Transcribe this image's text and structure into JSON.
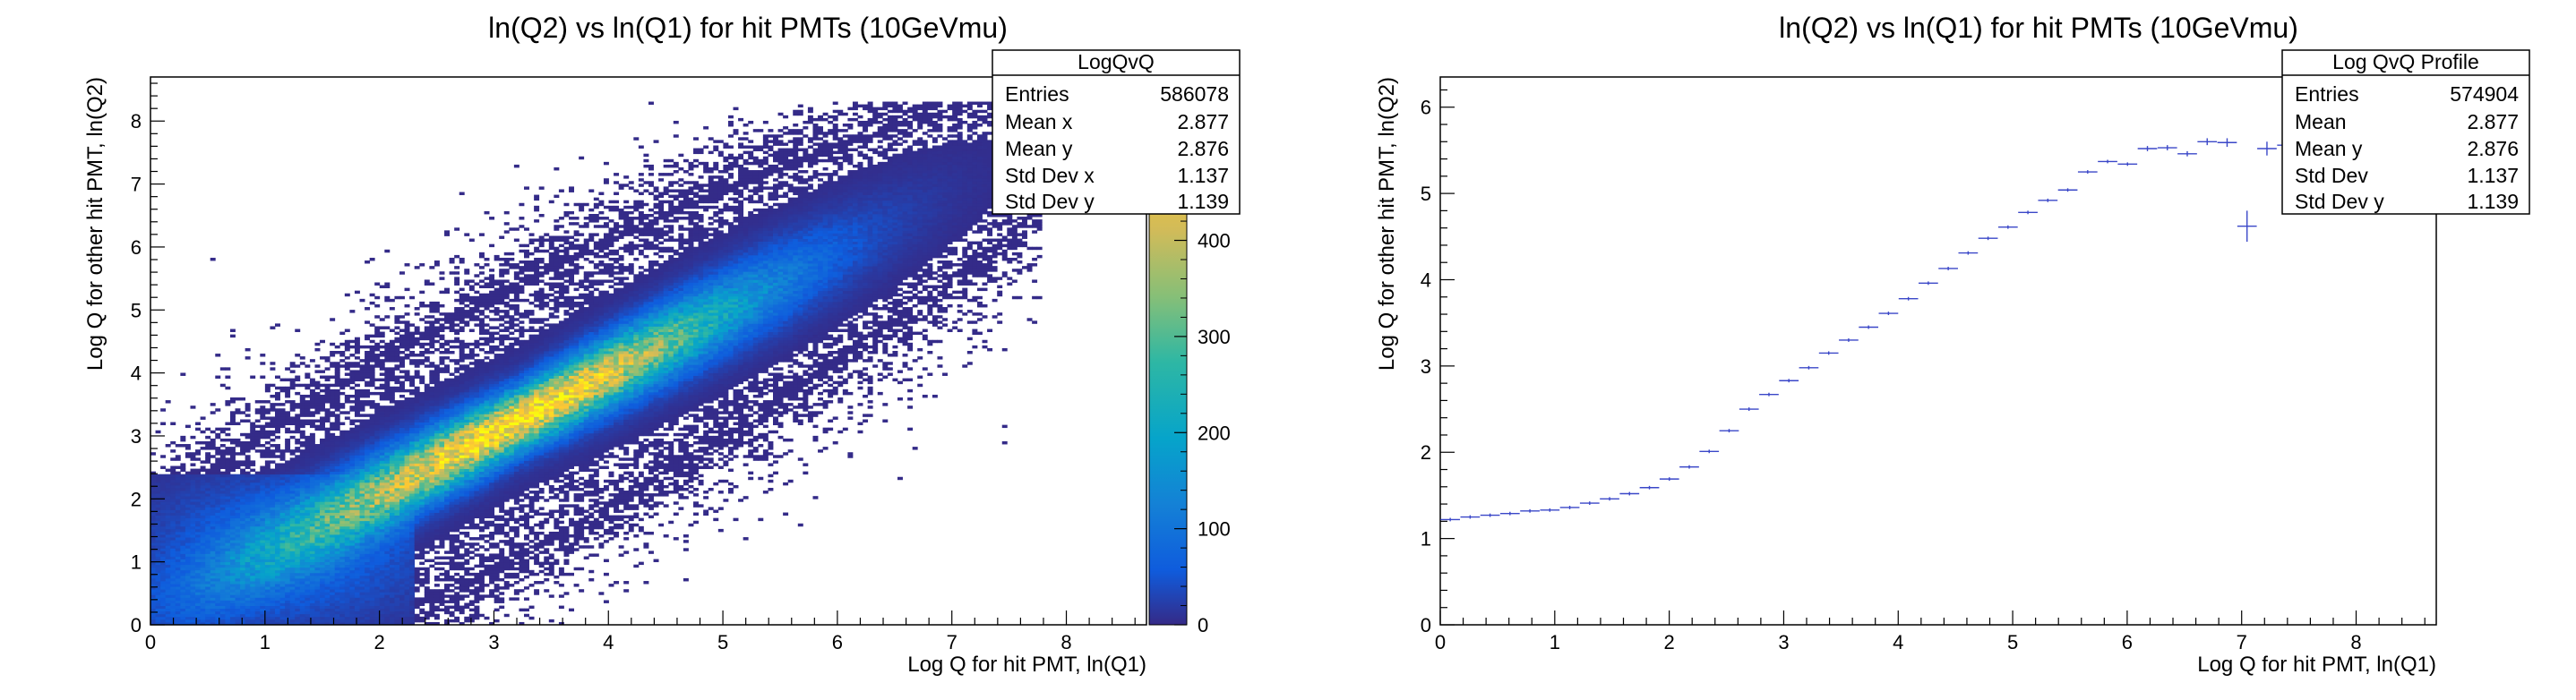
{
  "chart_data": [
    {
      "type": "heatmap",
      "title": "ln(Q2) vs ln(Q1) for hit PMTs (10GeVmu)",
      "xlabel": "Log Q for hit PMT, ln(Q1)",
      "ylabel": "Log Q for other hit PMT, ln(Q2)",
      "xlim": [
        0,
        8.7
      ],
      "ylim": [
        0,
        8.7
      ],
      "xticks": [
        "0",
        "1",
        "2",
        "3",
        "4",
        "5",
        "6",
        "7",
        "8"
      ],
      "yticks": [
        "0",
        "1",
        "2",
        "3",
        "4",
        "5",
        "6",
        "7",
        "8"
      ],
      "colorbar": {
        "min": 0,
        "max": 570,
        "ticks": [
          "0",
          "100",
          "200",
          "300",
          "400"
        ],
        "partial_ticks": [
          "0",
          "0"
        ]
      },
      "density_model": {
        "ridge_slope": 0.95,
        "ridge_intercept": 0.2,
        "peak_x": 3.2,
        "peak_y": 3.1,
        "peak_count": 520
      },
      "stats_box": {
        "title": "LogQvQ",
        "rows": [
          {
            "label": "Entries",
            "value": "586078"
          },
          {
            "label": "Mean x",
            "value": "2.877"
          },
          {
            "label": "Mean y",
            "value": "2.876"
          },
          {
            "label": "Std Dev x",
            "value": "1.137"
          },
          {
            "label": "Std Dev y",
            "value": "1.139"
          }
        ]
      }
    },
    {
      "type": "scatter",
      "title": "ln(Q2) vs ln(Q1) for hit PMTs (10GeVmu)",
      "xlabel": "Log Q for hit PMT, ln(Q1)",
      "ylabel": "Log Q for other hit PMT, ln(Q2)",
      "xlim": [
        0,
        8.7
      ],
      "ylim": [
        0,
        6.35
      ],
      "xticks": [
        "0",
        "1",
        "2",
        "3",
        "4",
        "5",
        "6",
        "7",
        "8"
      ],
      "yticks": [
        "0",
        "1",
        "2",
        "3",
        "4",
        "5",
        "6"
      ],
      "bin_width": 0.17,
      "x": [
        0.087,
        0.261,
        0.435,
        0.609,
        0.783,
        0.957,
        1.131,
        1.305,
        1.479,
        1.653,
        1.827,
        2.001,
        2.175,
        2.349,
        2.523,
        2.697,
        2.871,
        3.045,
        3.219,
        3.393,
        3.567,
        3.741,
        3.915,
        4.089,
        4.263,
        4.437,
        4.611,
        4.785,
        4.959,
        5.133,
        5.307,
        5.481,
        5.655,
        5.829,
        6.003,
        6.177,
        6.351,
        6.525,
        6.699,
        6.873,
        7.047,
        7.221,
        7.395
      ],
      "y": [
        1.22,
        1.25,
        1.27,
        1.29,
        1.32,
        1.33,
        1.36,
        1.41,
        1.46,
        1.52,
        1.59,
        1.69,
        1.83,
        2.01,
        2.25,
        2.5,
        2.67,
        2.83,
        2.98,
        3.15,
        3.3,
        3.45,
        3.61,
        3.78,
        3.96,
        4.13,
        4.31,
        4.48,
        4.61,
        4.78,
        4.92,
        5.04,
        5.25,
        5.37,
        5.34,
        5.52,
        5.53,
        5.46,
        5.6,
        5.59,
        4.62,
        5.52,
        5.56
      ],
      "yerr": [
        0.02,
        0.02,
        0.02,
        0.02,
        0.02,
        0.02,
        0.02,
        0.02,
        0.02,
        0.02,
        0.02,
        0.02,
        0.02,
        0.02,
        0.02,
        0.02,
        0.02,
        0.02,
        0.02,
        0.02,
        0.02,
        0.02,
        0.02,
        0.02,
        0.02,
        0.02,
        0.02,
        0.02,
        0.02,
        0.02,
        0.02,
        0.02,
        0.02,
        0.02,
        0.02,
        0.03,
        0.03,
        0.03,
        0.04,
        0.05,
        0.18,
        0.08,
        0.2
      ],
      "stats_box": {
        "title": "Log QvQ Profile",
        "rows": [
          {
            "label": "Entries",
            "value": "574904"
          },
          {
            "label": "Mean",
            "value": "2.877"
          },
          {
            "label": "Mean y",
            "value": "2.876"
          },
          {
            "label": "Std Dev",
            "value": "1.137"
          },
          {
            "label": "Std Dev y",
            "value": "1.139"
          }
        ]
      }
    }
  ]
}
